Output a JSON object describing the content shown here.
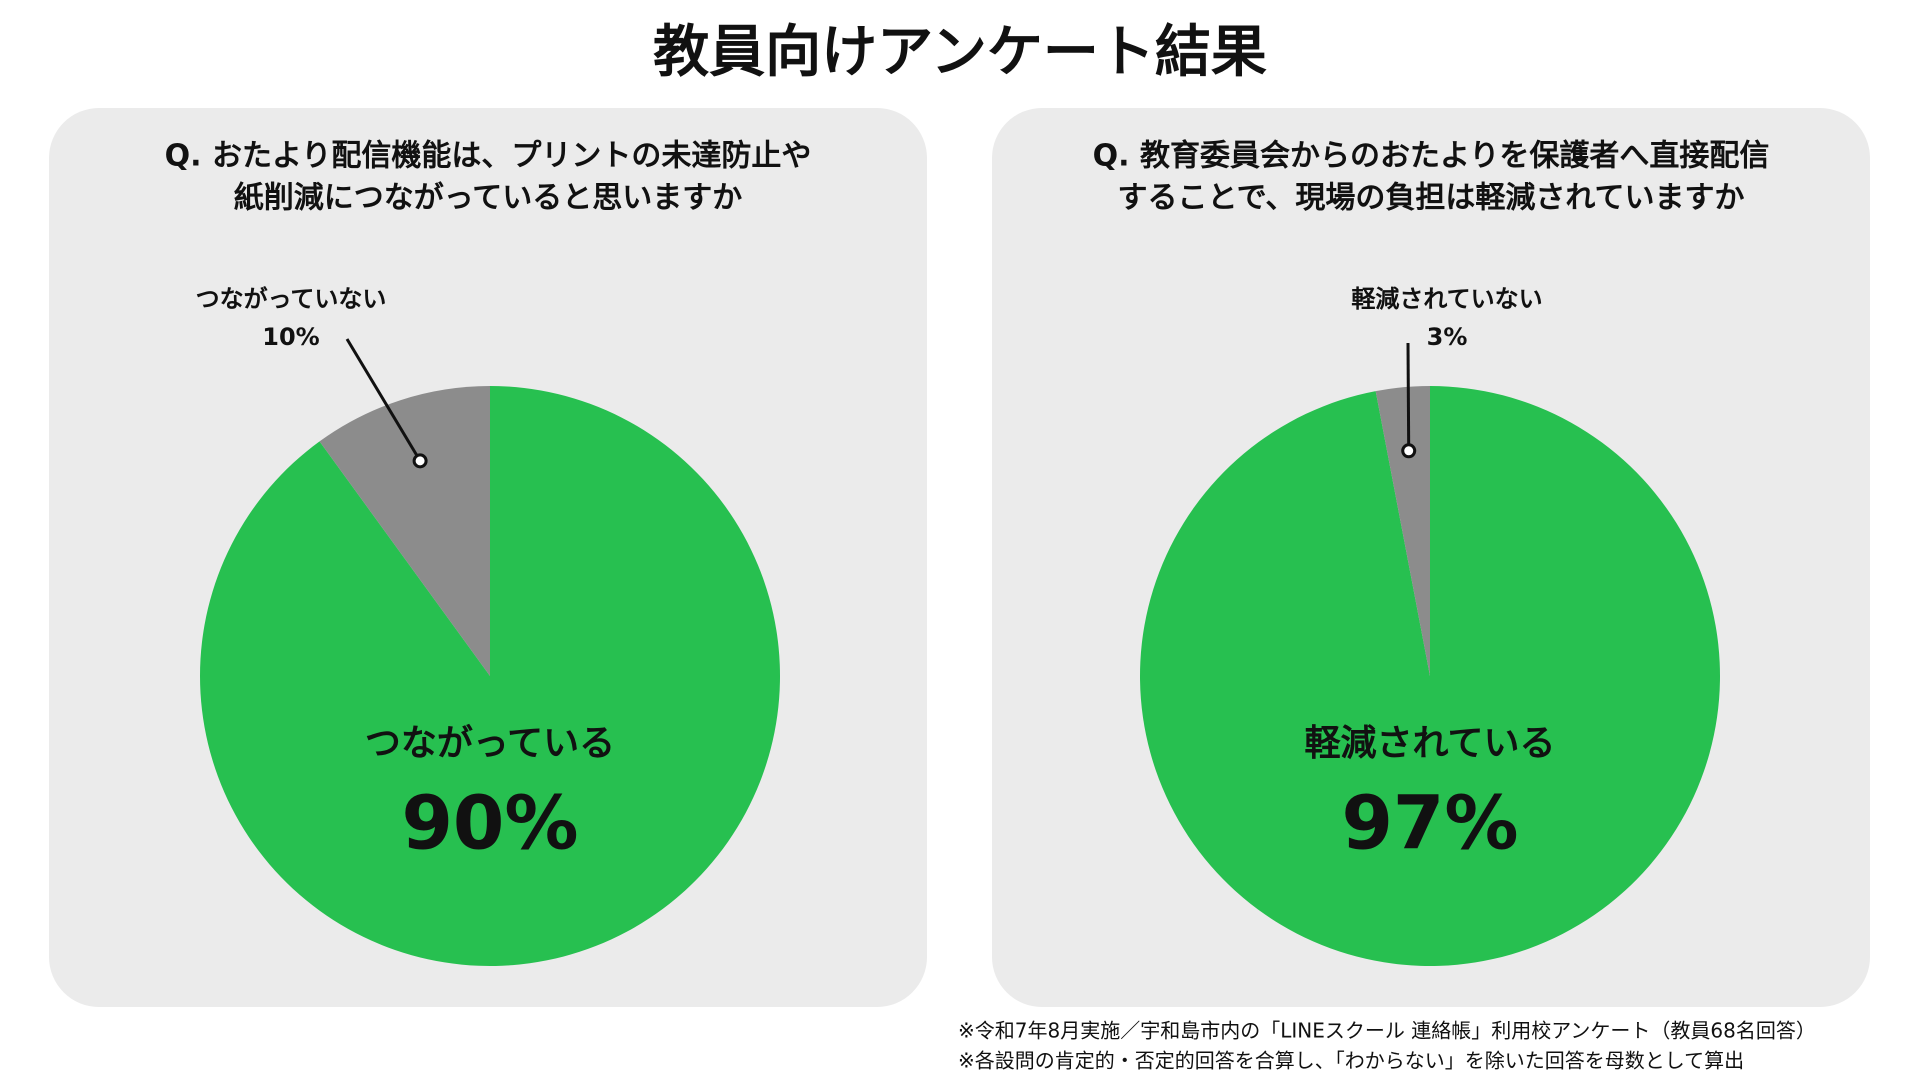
{
  "title": "教員向けアンケート結果",
  "notes": [
    "※令和7年8月実施／宇和島市内の「LINEスクール 連絡帳」利用校アンケート（教員68名回答）",
    "※各設問の肯定的・否定的回答を合算し、「わからない」を除いた回答を母数として算出"
  ],
  "chart_data": [
    {
      "type": "pie",
      "title": [
        "Q. おたより配信機能は、プリントの未達防止や",
        "紙削減につながっていると思いますか"
      ],
      "categories": [
        "つながっている",
        "つながっていない"
      ],
      "values": [
        90,
        10
      ],
      "value_labels": [
        "90%",
        "10%"
      ],
      "colors": [
        "#27c050",
        "#8c8c8c"
      ]
    },
    {
      "type": "pie",
      "title": [
        "Q. 教育委員会からのおたよりを保護者へ直接配信",
        "することで、現場の負担は軽減されていますか"
      ],
      "categories": [
        "軽減されている",
        "軽減されていない"
      ],
      "values": [
        97,
        3
      ],
      "value_labels": [
        "97%",
        "3%"
      ],
      "colors": [
        "#27c050",
        "#8c8c8c"
      ]
    }
  ]
}
